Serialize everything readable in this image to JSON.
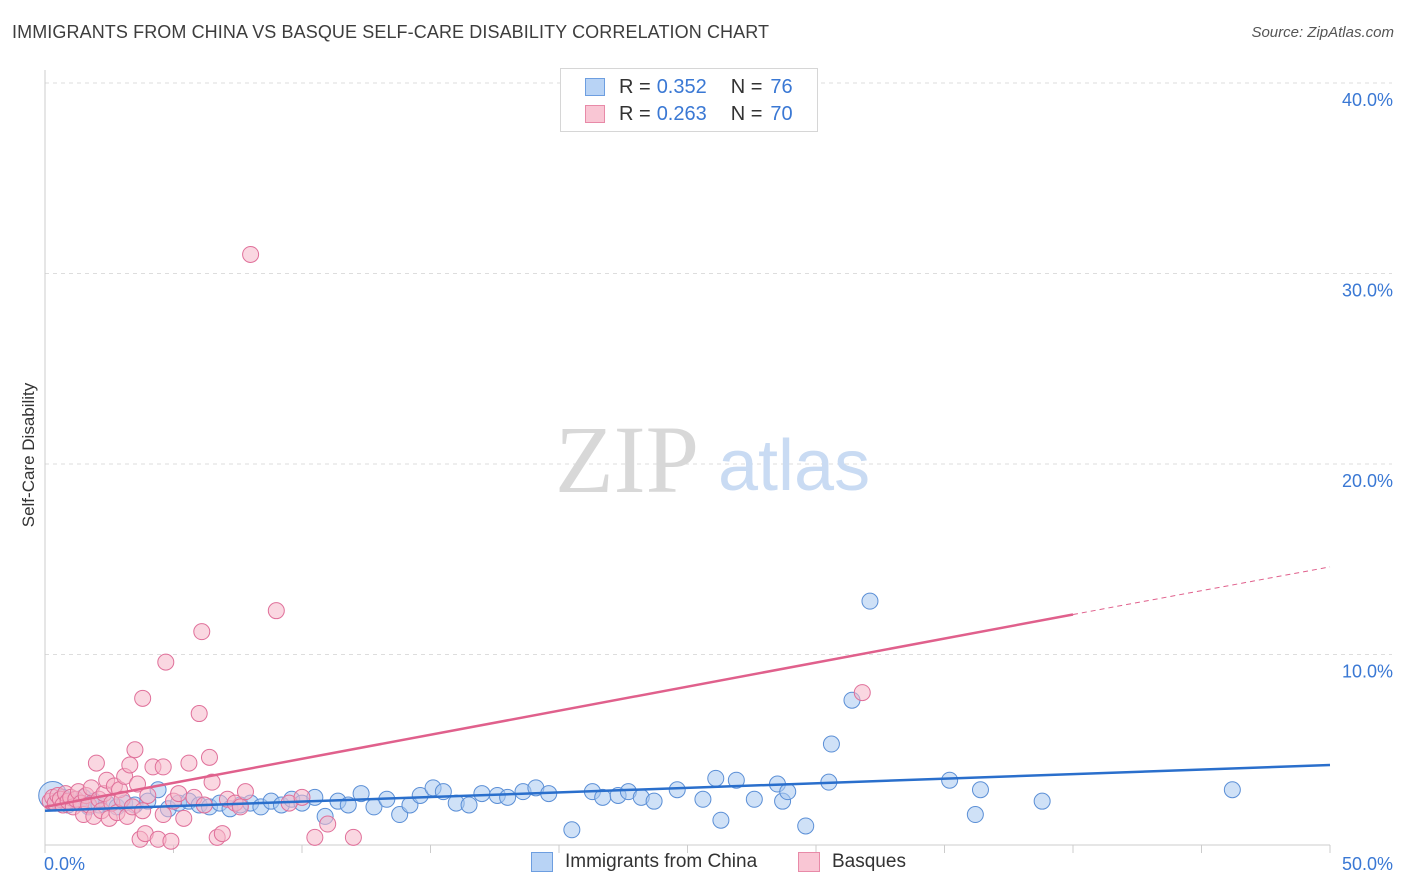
{
  "header": {
    "title": "IMMIGRANTS FROM CHINA VS BASQUE SELF-CARE DISABILITY CORRELATION CHART",
    "source": "Source: ZipAtlas.com"
  },
  "watermark": {
    "zip": "ZIP",
    "atlas": "atlas"
  },
  "legend_stats": [
    {
      "r_label": "R =",
      "r_value": "0.352",
      "n_label": "N =",
      "n_value": "76"
    },
    {
      "r_label": "R =",
      "r_value": "0.263",
      "n_label": "N =",
      "n_value": "70"
    }
  ],
  "colors": {
    "china_fill": "#a8c8f0",
    "china_stroke": "#5b8fd6",
    "china_line": "#2a6fcc",
    "basque_fill": "#f6b6c8",
    "basque_stroke": "#e0709a",
    "basque_line": "#e0608c",
    "axis_text": "#3a78d4",
    "grid": "#dddddd"
  },
  "chart_data": {
    "type": "scatter",
    "title": "IMMIGRANTS FROM CHINA VS BASQUE SELF-CARE DISABILITY CORRELATION CHART",
    "xlabel": "",
    "ylabel": "Self-Care Disability",
    "xlim": [
      0,
      50
    ],
    "ylim": [
      0,
      42
    ],
    "x_tick_labels": [
      "0.0%",
      "50.0%"
    ],
    "y_ticks": [
      10,
      20,
      30,
      40
    ],
    "y_tick_labels": [
      "10.0%",
      "20.0%",
      "30.0%",
      "40.0%"
    ],
    "grid": true,
    "legend_position": "bottom",
    "series": [
      {
        "name": "Immigrants from China",
        "r": 0.352,
        "n": 76,
        "trend": {
          "x0": 0,
          "y0": 1.8,
          "x1": 50,
          "y1": 4.2
        },
        "points": [
          [
            0.3,
            2.6
          ],
          [
            0.5,
            2.3
          ],
          [
            0.7,
            2.5
          ],
          [
            0.9,
            2.1
          ],
          [
            1.1,
            2.4
          ],
          [
            1.3,
            2.2
          ],
          [
            1.5,
            2.5
          ],
          [
            1.7,
            2.0
          ],
          [
            1.9,
            2.3
          ],
          [
            2.1,
            2.1
          ],
          [
            2.4,
            2.2
          ],
          [
            2.8,
            2.0
          ],
          [
            3.1,
            2.2
          ],
          [
            3.5,
            2.1
          ],
          [
            4.0,
            2.3
          ],
          [
            4.4,
            2.9
          ],
          [
            4.8,
            1.9
          ],
          [
            5.2,
            2.2
          ],
          [
            5.6,
            2.3
          ],
          [
            6.0,
            2.1
          ],
          [
            6.4,
            2.0
          ],
          [
            6.8,
            2.2
          ],
          [
            7.2,
            1.9
          ],
          [
            7.6,
            2.1
          ],
          [
            8.0,
            2.2
          ],
          [
            8.4,
            2.0
          ],
          [
            8.8,
            2.3
          ],
          [
            9.2,
            2.1
          ],
          [
            9.6,
            2.4
          ],
          [
            10.0,
            2.2
          ],
          [
            10.5,
            2.5
          ],
          [
            10.9,
            1.5
          ],
          [
            11.4,
            2.3
          ],
          [
            11.8,
            2.1
          ],
          [
            12.3,
            2.7
          ],
          [
            12.8,
            2.0
          ],
          [
            13.3,
            2.4
          ],
          [
            13.8,
            1.6
          ],
          [
            14.2,
            2.1
          ],
          [
            14.6,
            2.6
          ],
          [
            15.1,
            3.0
          ],
          [
            15.5,
            2.8
          ],
          [
            16.0,
            2.2
          ],
          [
            16.5,
            2.1
          ],
          [
            17.0,
            2.7
          ],
          [
            17.6,
            2.6
          ],
          [
            18.0,
            2.5
          ],
          [
            18.6,
            2.8
          ],
          [
            19.1,
            3.0
          ],
          [
            19.6,
            2.7
          ],
          [
            20.5,
            0.8
          ],
          [
            21.3,
            2.8
          ],
          [
            21.7,
            2.5
          ],
          [
            22.3,
            2.6
          ],
          [
            22.7,
            2.8
          ],
          [
            23.2,
            2.5
          ],
          [
            23.7,
            2.3
          ],
          [
            24.6,
            2.9
          ],
          [
            25.6,
            2.4
          ],
          [
            26.1,
            3.5
          ],
          [
            26.3,
            1.3
          ],
          [
            26.9,
            3.4
          ],
          [
            27.6,
            2.4
          ],
          [
            28.5,
            3.2
          ],
          [
            28.7,
            2.3
          ],
          [
            28.9,
            2.8
          ],
          [
            29.6,
            1.0
          ],
          [
            30.5,
            3.3
          ],
          [
            30.6,
            5.3
          ],
          [
            31.4,
            7.6
          ],
          [
            32.1,
            12.8
          ],
          [
            35.2,
            3.4
          ],
          [
            36.2,
            1.6
          ],
          [
            36.4,
            2.9
          ],
          [
            38.8,
            2.3
          ],
          [
            46.2,
            2.9
          ]
        ]
      },
      {
        "name": "Basques",
        "r": 0.263,
        "n": 70,
        "trend": {
          "x0": 0,
          "y0": 2.0,
          "x1": 40,
          "y1": 12.1,
          "dash_to_x": 50,
          "dash_to_y": 14.6
        },
        "points": [
          [
            0.2,
            2.3
          ],
          [
            0.3,
            2.5
          ],
          [
            0.4,
            2.2
          ],
          [
            0.5,
            2.6
          ],
          [
            0.6,
            2.4
          ],
          [
            0.7,
            2.1
          ],
          [
            0.8,
            2.7
          ],
          [
            0.9,
            2.3
          ],
          [
            1.0,
            2.5
          ],
          [
            1.1,
            2.0
          ],
          [
            1.2,
            2.4
          ],
          [
            1.3,
            2.8
          ],
          [
            1.4,
            2.2
          ],
          [
            1.5,
            1.6
          ],
          [
            1.6,
            2.6
          ],
          [
            1.7,
            2.1
          ],
          [
            1.8,
            3.0
          ],
          [
            1.9,
            1.5
          ],
          [
            2.0,
            4.3
          ],
          [
            2.1,
            2.4
          ],
          [
            2.2,
            1.8
          ],
          [
            2.3,
            2.7
          ],
          [
            2.4,
            3.4
          ],
          [
            2.5,
            1.4
          ],
          [
            2.6,
            2.2
          ],
          [
            2.7,
            3.1
          ],
          [
            2.8,
            1.7
          ],
          [
            2.9,
            2.9
          ],
          [
            3.0,
            2.4
          ],
          [
            3.1,
            3.6
          ],
          [
            3.2,
            1.5
          ],
          [
            3.3,
            4.2
          ],
          [
            3.4,
            2.0
          ],
          [
            3.5,
            5.0
          ],
          [
            3.6,
            3.2
          ],
          [
            3.7,
            0.3
          ],
          [
            3.8,
            1.8
          ],
          [
            3.9,
            0.6
          ],
          [
            4.0,
            2.6
          ],
          [
            4.2,
            4.1
          ],
          [
            4.4,
            0.3
          ],
          [
            4.6,
            1.6
          ],
          [
            4.7,
            9.6
          ],
          [
            4.9,
            0.2
          ],
          [
            5.0,
            2.3
          ],
          [
            5.2,
            2.7
          ],
          [
            5.4,
            1.4
          ],
          [
            5.6,
            4.3
          ],
          [
            5.8,
            2.5
          ],
          [
            6.0,
            6.9
          ],
          [
            6.1,
            11.2
          ],
          [
            6.2,
            2.1
          ],
          [
            6.4,
            4.6
          ],
          [
            6.5,
            3.3
          ],
          [
            6.7,
            0.4
          ],
          [
            6.9,
            0.6
          ],
          [
            7.1,
            2.4
          ],
          [
            7.4,
            2.2
          ],
          [
            7.6,
            2.0
          ],
          [
            7.8,
            2.8
          ],
          [
            8.0,
            31.0
          ],
          [
            9.0,
            12.3
          ],
          [
            9.5,
            2.2
          ],
          [
            10.0,
            2.5
          ],
          [
            10.5,
            0.4
          ],
          [
            11.0,
            1.1
          ],
          [
            12.0,
            0.4
          ],
          [
            3.8,
            7.7
          ],
          [
            4.6,
            4.1
          ],
          [
            31.8,
            8.0
          ]
        ]
      }
    ]
  }
}
